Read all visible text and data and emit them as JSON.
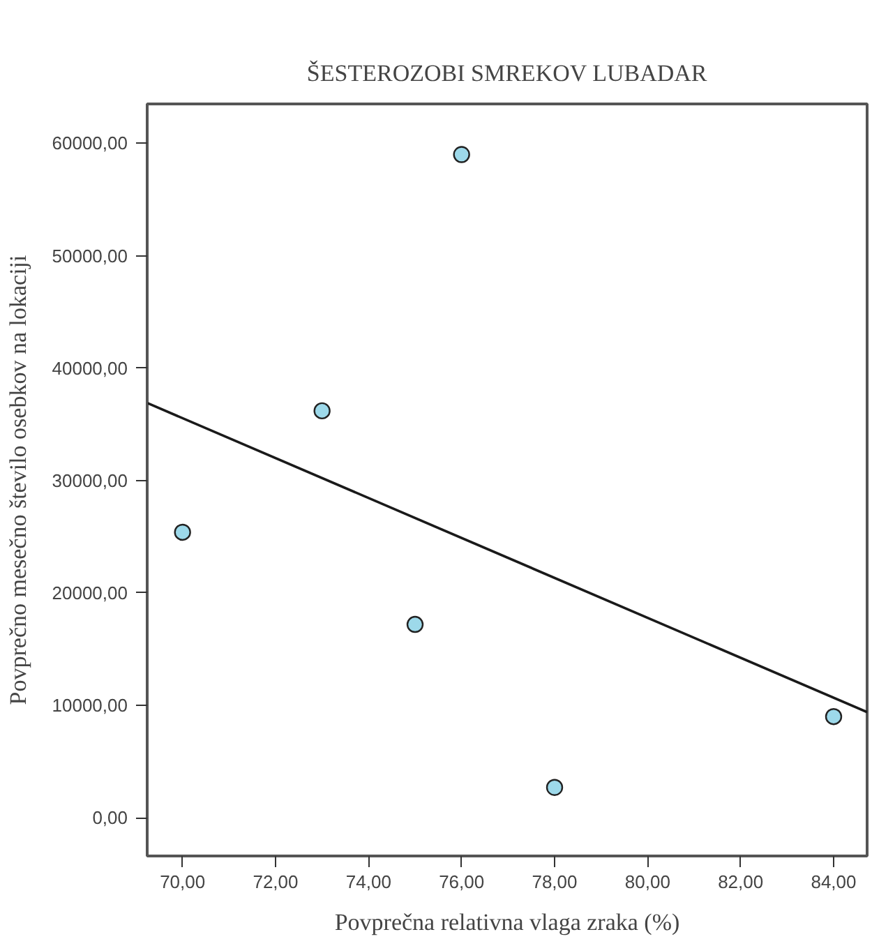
{
  "chart_data": {
    "type": "scatter",
    "title": "ŠESTEROZOBI SMREKOV LUBADAR",
    "xlabel": "Povprečna relativna vlaga zraka (%)",
    "ylabel": "Povprečno mesečno število osebkov na lokaciji",
    "x": [
      70,
      73,
      75,
      76,
      78,
      84
    ],
    "series": [
      {
        "color": "#9dd9ea",
        "marker": "circle",
        "values": [
          25400,
          36200,
          17200,
          59000,
          2700,
          9000
        ]
      },
      {
        "type": "line",
        "color": "#1a1a1a",
        "x": [
          69.24,
          84.72
        ],
        "values": [
          36900,
          9400
        ]
      }
    ],
    "xlim": [
      69.24,
      84.72
    ],
    "ylim": [
      -3400,
      63500
    ],
    "xticks": [
      {
        "value": 70,
        "label": "70,00"
      },
      {
        "value": 72,
        "label": "72,00"
      },
      {
        "value": 74,
        "label": "74,00"
      },
      {
        "value": 76,
        "label": "76,00"
      },
      {
        "value": 78,
        "label": "78,00"
      },
      {
        "value": 80,
        "label": "80,00"
      },
      {
        "value": 82,
        "label": "82,00"
      },
      {
        "value": 84,
        "label": "84,00"
      }
    ],
    "yticks": [
      {
        "value": 0,
        "label": "0,00"
      },
      {
        "value": 10000,
        "label": "10000,00"
      },
      {
        "value": 20000,
        "label": "20000,00"
      },
      {
        "value": 30000,
        "label": "30000,00"
      },
      {
        "value": 40000,
        "label": "40000,00"
      },
      {
        "value": 50000,
        "label": "50000,00"
      },
      {
        "value": 60000,
        "label": "60000,00"
      }
    ],
    "grid": false
  }
}
